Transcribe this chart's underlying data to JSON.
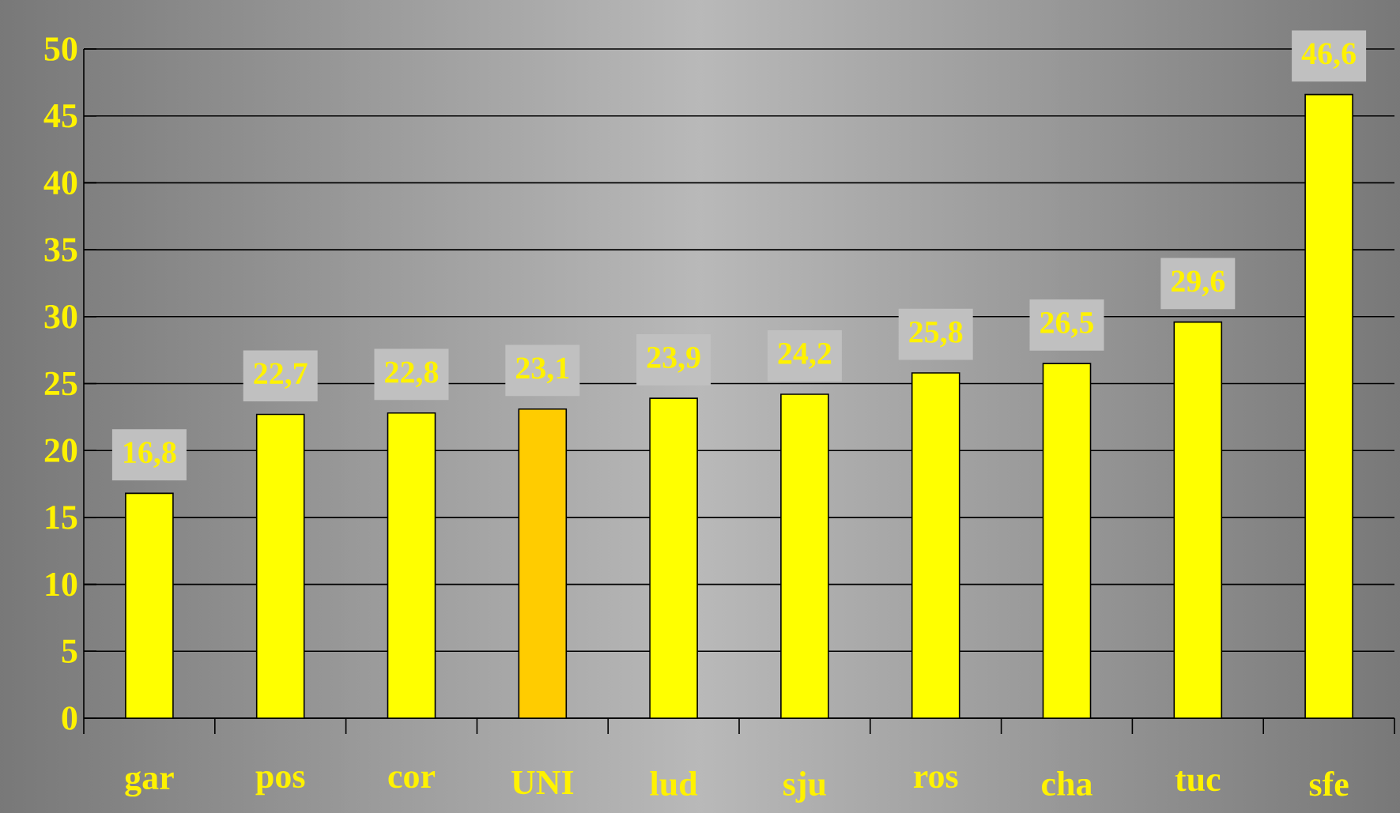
{
  "chart_data": {
    "type": "bar",
    "categories": [
      "gar",
      "pos",
      "cor",
      "UNI",
      "lud",
      "sju",
      "ros",
      "cha",
      "tuc",
      "sfe"
    ],
    "values": [
      16.8,
      22.7,
      22.8,
      23.1,
      23.9,
      24.2,
      25.8,
      26.5,
      29.6,
      46.6
    ],
    "colors": [
      "#ffff00",
      "#ffff00",
      "#ffff00",
      "#ffcc00",
      "#ffff00",
      "#ffff00",
      "#ffff00",
      "#ffff00",
      "#ffff00",
      "#ffff00"
    ],
    "value_labels": [
      "16,8",
      "22,7",
      "22,8",
      "23,1",
      "23,9",
      "24,2",
      "25,8",
      "26,5",
      "29,6",
      "46,6"
    ],
    "ylim": [
      0,
      50
    ],
    "yticks": [
      0,
      5,
      10,
      15,
      20,
      25,
      30,
      35,
      40,
      45,
      50
    ],
    "grid": "y"
  }
}
